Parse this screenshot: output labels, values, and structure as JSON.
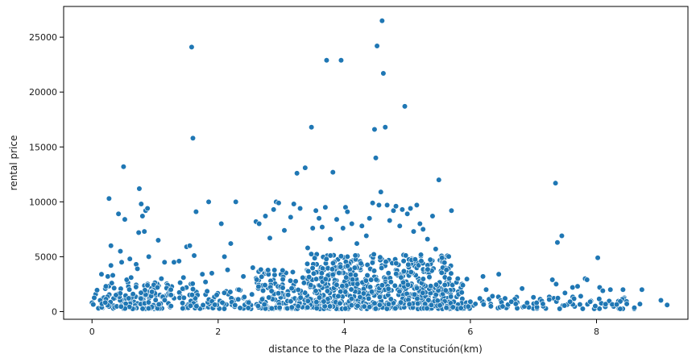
{
  "chart_data": {
    "type": "scatter",
    "title": "",
    "xlabel": "distance to the Plaza de la Constitución(km)",
    "ylabel": "rental price",
    "xlim": [
      -0.45,
      9.45
    ],
    "ylim": [
      -700,
      27800
    ],
    "xticks": [
      0,
      2,
      4,
      6,
      8
    ],
    "yticks": [
      0,
      5000,
      10000,
      15000,
      20000,
      25000
    ],
    "grid": false,
    "legend": "none",
    "marker_color": "#1f77b4",
    "marker_edge_color": "#ffffff",
    "points": [
      [
        0.02,
        650
      ],
      [
        0.08,
        1950
      ],
      [
        0.15,
        3400
      ],
      [
        0.22,
        2300
      ],
      [
        0.25,
        3200
      ],
      [
        0.27,
        10300
      ],
      [
        0.3,
        6000
      ],
      [
        0.3,
        4200
      ],
      [
        0.33,
        3300
      ],
      [
        0.38,
        1500
      ],
      [
        0.42,
        8900
      ],
      [
        0.45,
        5500
      ],
      [
        0.47,
        4500
      ],
      [
        0.5,
        13200
      ],
      [
        0.52,
        8400
      ],
      [
        0.55,
        2900
      ],
      [
        0.6,
        4800
      ],
      [
        0.62,
        3100
      ],
      [
        0.65,
        1600
      ],
      [
        0.7,
        4300
      ],
      [
        0.72,
        3900
      ],
      [
        0.74,
        7200
      ],
      [
        0.75,
        11200
      ],
      [
        0.78,
        9800
      ],
      [
        0.8,
        8700
      ],
      [
        0.83,
        7300
      ],
      [
        0.85,
        9200
      ],
      [
        0.88,
        9400
      ],
      [
        0.9,
        5000
      ],
      [
        0.95,
        1800
      ],
      [
        1.05,
        6500
      ],
      [
        1.1,
        3000
      ],
      [
        1.15,
        4500
      ],
      [
        1.25,
        2000
      ],
      [
        1.3,
        4500
      ],
      [
        1.38,
        4600
      ],
      [
        1.45,
        3100
      ],
      [
        1.5,
        5900
      ],
      [
        1.55,
        6000
      ],
      [
        1.58,
        24100
      ],
      [
        1.6,
        15800
      ],
      [
        1.62,
        5100
      ],
      [
        1.65,
        9100
      ],
      [
        1.75,
        3400
      ],
      [
        1.8,
        2700
      ],
      [
        1.85,
        10000
      ],
      [
        1.9,
        3500
      ],
      [
        2.05,
        8000
      ],
      [
        2.1,
        5000
      ],
      [
        2.15,
        3800
      ],
      [
        2.2,
        6200
      ],
      [
        2.28,
        10000
      ],
      [
        2.4,
        3200
      ],
      [
        2.55,
        4000
      ],
      [
        2.6,
        8200
      ],
      [
        2.65,
        8000
      ],
      [
        2.75,
        8700
      ],
      [
        2.82,
        6700
      ],
      [
        2.88,
        9300
      ],
      [
        2.92,
        10000
      ],
      [
        2.96,
        9900
      ],
      [
        3.05,
        7400
      ],
      [
        3.15,
        8600
      ],
      [
        3.2,
        9800
      ],
      [
        3.25,
        12600
      ],
      [
        3.3,
        9400
      ],
      [
        3.38,
        13100
      ],
      [
        3.42,
        5800
      ],
      [
        3.48,
        16800
      ],
      [
        3.5,
        7600
      ],
      [
        3.55,
        9200
      ],
      [
        3.6,
        8500
      ],
      [
        3.65,
        7700
      ],
      [
        3.7,
        9500
      ],
      [
        3.72,
        22900
      ],
      [
        3.78,
        6600
      ],
      [
        3.82,
        12700
      ],
      [
        3.88,
        8400
      ],
      [
        3.95,
        22900
      ],
      [
        3.98,
        7600
      ],
      [
        4.02,
        9500
      ],
      [
        4.05,
        9100
      ],
      [
        4.12,
        8000
      ],
      [
        4.2,
        6200
      ],
      [
        4.28,
        7800
      ],
      [
        4.35,
        6900
      ],
      [
        4.4,
        8500
      ],
      [
        4.45,
        9900
      ],
      [
        4.48,
        16600
      ],
      [
        4.5,
        14000
      ],
      [
        4.52,
        24200
      ],
      [
        4.55,
        9700
      ],
      [
        4.58,
        10900
      ],
      [
        4.6,
        26500
      ],
      [
        4.62,
        21700
      ],
      [
        4.65,
        16800
      ],
      [
        4.68,
        9700
      ],
      [
        4.72,
        8300
      ],
      [
        4.78,
        9200
      ],
      [
        4.82,
        9600
      ],
      [
        4.88,
        7800
      ],
      [
        4.92,
        9300
      ],
      [
        4.96,
        18700
      ],
      [
        5.0,
        8900
      ],
      [
        5.05,
        9400
      ],
      [
        5.1,
        7300
      ],
      [
        5.15,
        9700
      ],
      [
        5.2,
        8000
      ],
      [
        5.25,
        7500
      ],
      [
        5.32,
        6600
      ],
      [
        5.4,
        8700
      ],
      [
        5.45,
        5700
      ],
      [
        5.5,
        12000
      ],
      [
        5.55,
        4900
      ],
      [
        5.62,
        3800
      ],
      [
        5.7,
        9200
      ],
      [
        5.8,
        3000
      ],
      [
        5.88,
        2400
      ],
      [
        6.0,
        900
      ],
      [
        6.08,
        700
      ],
      [
        6.15,
        1200
      ],
      [
        6.2,
        3200
      ],
      [
        6.25,
        2000
      ],
      [
        6.35,
        1400
      ],
      [
        6.45,
        3400
      ],
      [
        6.55,
        1200
      ],
      [
        6.65,
        900
      ],
      [
        6.72,
        700
      ],
      [
        6.82,
        2100
      ],
      [
        6.9,
        800
      ],
      [
        7.0,
        1300
      ],
      [
        7.05,
        800
      ],
      [
        7.15,
        700
      ],
      [
        7.25,
        1100
      ],
      [
        7.3,
        2900
      ],
      [
        7.35,
        11700
      ],
      [
        7.36,
        2500
      ],
      [
        7.38,
        6300
      ],
      [
        7.45,
        6900
      ],
      [
        7.5,
        1700
      ],
      [
        7.58,
        900
      ],
      [
        7.62,
        2200
      ],
      [
        7.7,
        2300
      ],
      [
        7.75,
        1400
      ],
      [
        7.82,
        3000
      ],
      [
        7.85,
        2900
      ],
      [
        7.9,
        900
      ],
      [
        7.98,
        500
      ],
      [
        8.02,
        4900
      ],
      [
        8.05,
        2200
      ],
      [
        8.1,
        1900
      ],
      [
        8.22,
        2000
      ],
      [
        8.25,
        650
      ],
      [
        8.32,
        650
      ],
      [
        8.42,
        2000
      ],
      [
        8.48,
        700
      ],
      [
        8.6,
        350
      ],
      [
        8.72,
        2000
      ],
      [
        9.12,
        600
      ]
    ]
  }
}
